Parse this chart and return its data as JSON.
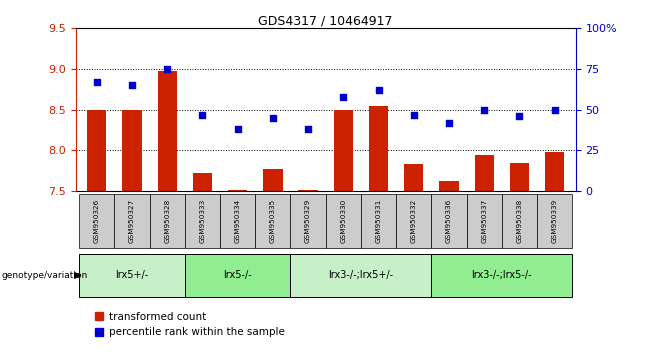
{
  "title": "GDS4317 / 10464917",
  "samples": [
    "GSM950326",
    "GSM950327",
    "GSM950328",
    "GSM950333",
    "GSM950334",
    "GSM950335",
    "GSM950329",
    "GSM950330",
    "GSM950331",
    "GSM950332",
    "GSM950336",
    "GSM950337",
    "GSM950338",
    "GSM950339"
  ],
  "bar_values": [
    8.5,
    8.5,
    8.98,
    7.72,
    7.52,
    7.77,
    7.52,
    8.5,
    8.55,
    7.83,
    7.63,
    7.95,
    7.84,
    7.98
  ],
  "scatter_percentile": [
    67,
    65,
    75,
    47,
    38,
    45,
    38,
    58,
    62,
    47,
    42,
    50,
    46,
    50
  ],
  "groups": [
    {
      "label": "lrx5+/-",
      "start": 0,
      "end": 3,
      "color": "#c8f0c8"
    },
    {
      "label": "lrx5-/-",
      "start": 3,
      "end": 6,
      "color": "#90ee90"
    },
    {
      "label": "lrx3-/-;lrx5+/-",
      "start": 6,
      "end": 10,
      "color": "#c8f0c8"
    },
    {
      "label": "lrx3-/-;lrx5-/-",
      "start": 10,
      "end": 14,
      "color": "#90ee90"
    }
  ],
  "ylim_left": [
    7.5,
    9.5
  ],
  "ylim_right": [
    0,
    100
  ],
  "bar_color": "#cc2200",
  "scatter_color": "#0000cc",
  "bar_width": 0.55,
  "legend_red": "transformed count",
  "legend_blue": "percentile rank within the sample",
  "background_color": "#ffffff",
  "tick_color_left": "#cc2200",
  "tick_color_right": "#0000cc",
  "genotype_label": "genotype/variation",
  "sample_header_color": "#cccccc"
}
